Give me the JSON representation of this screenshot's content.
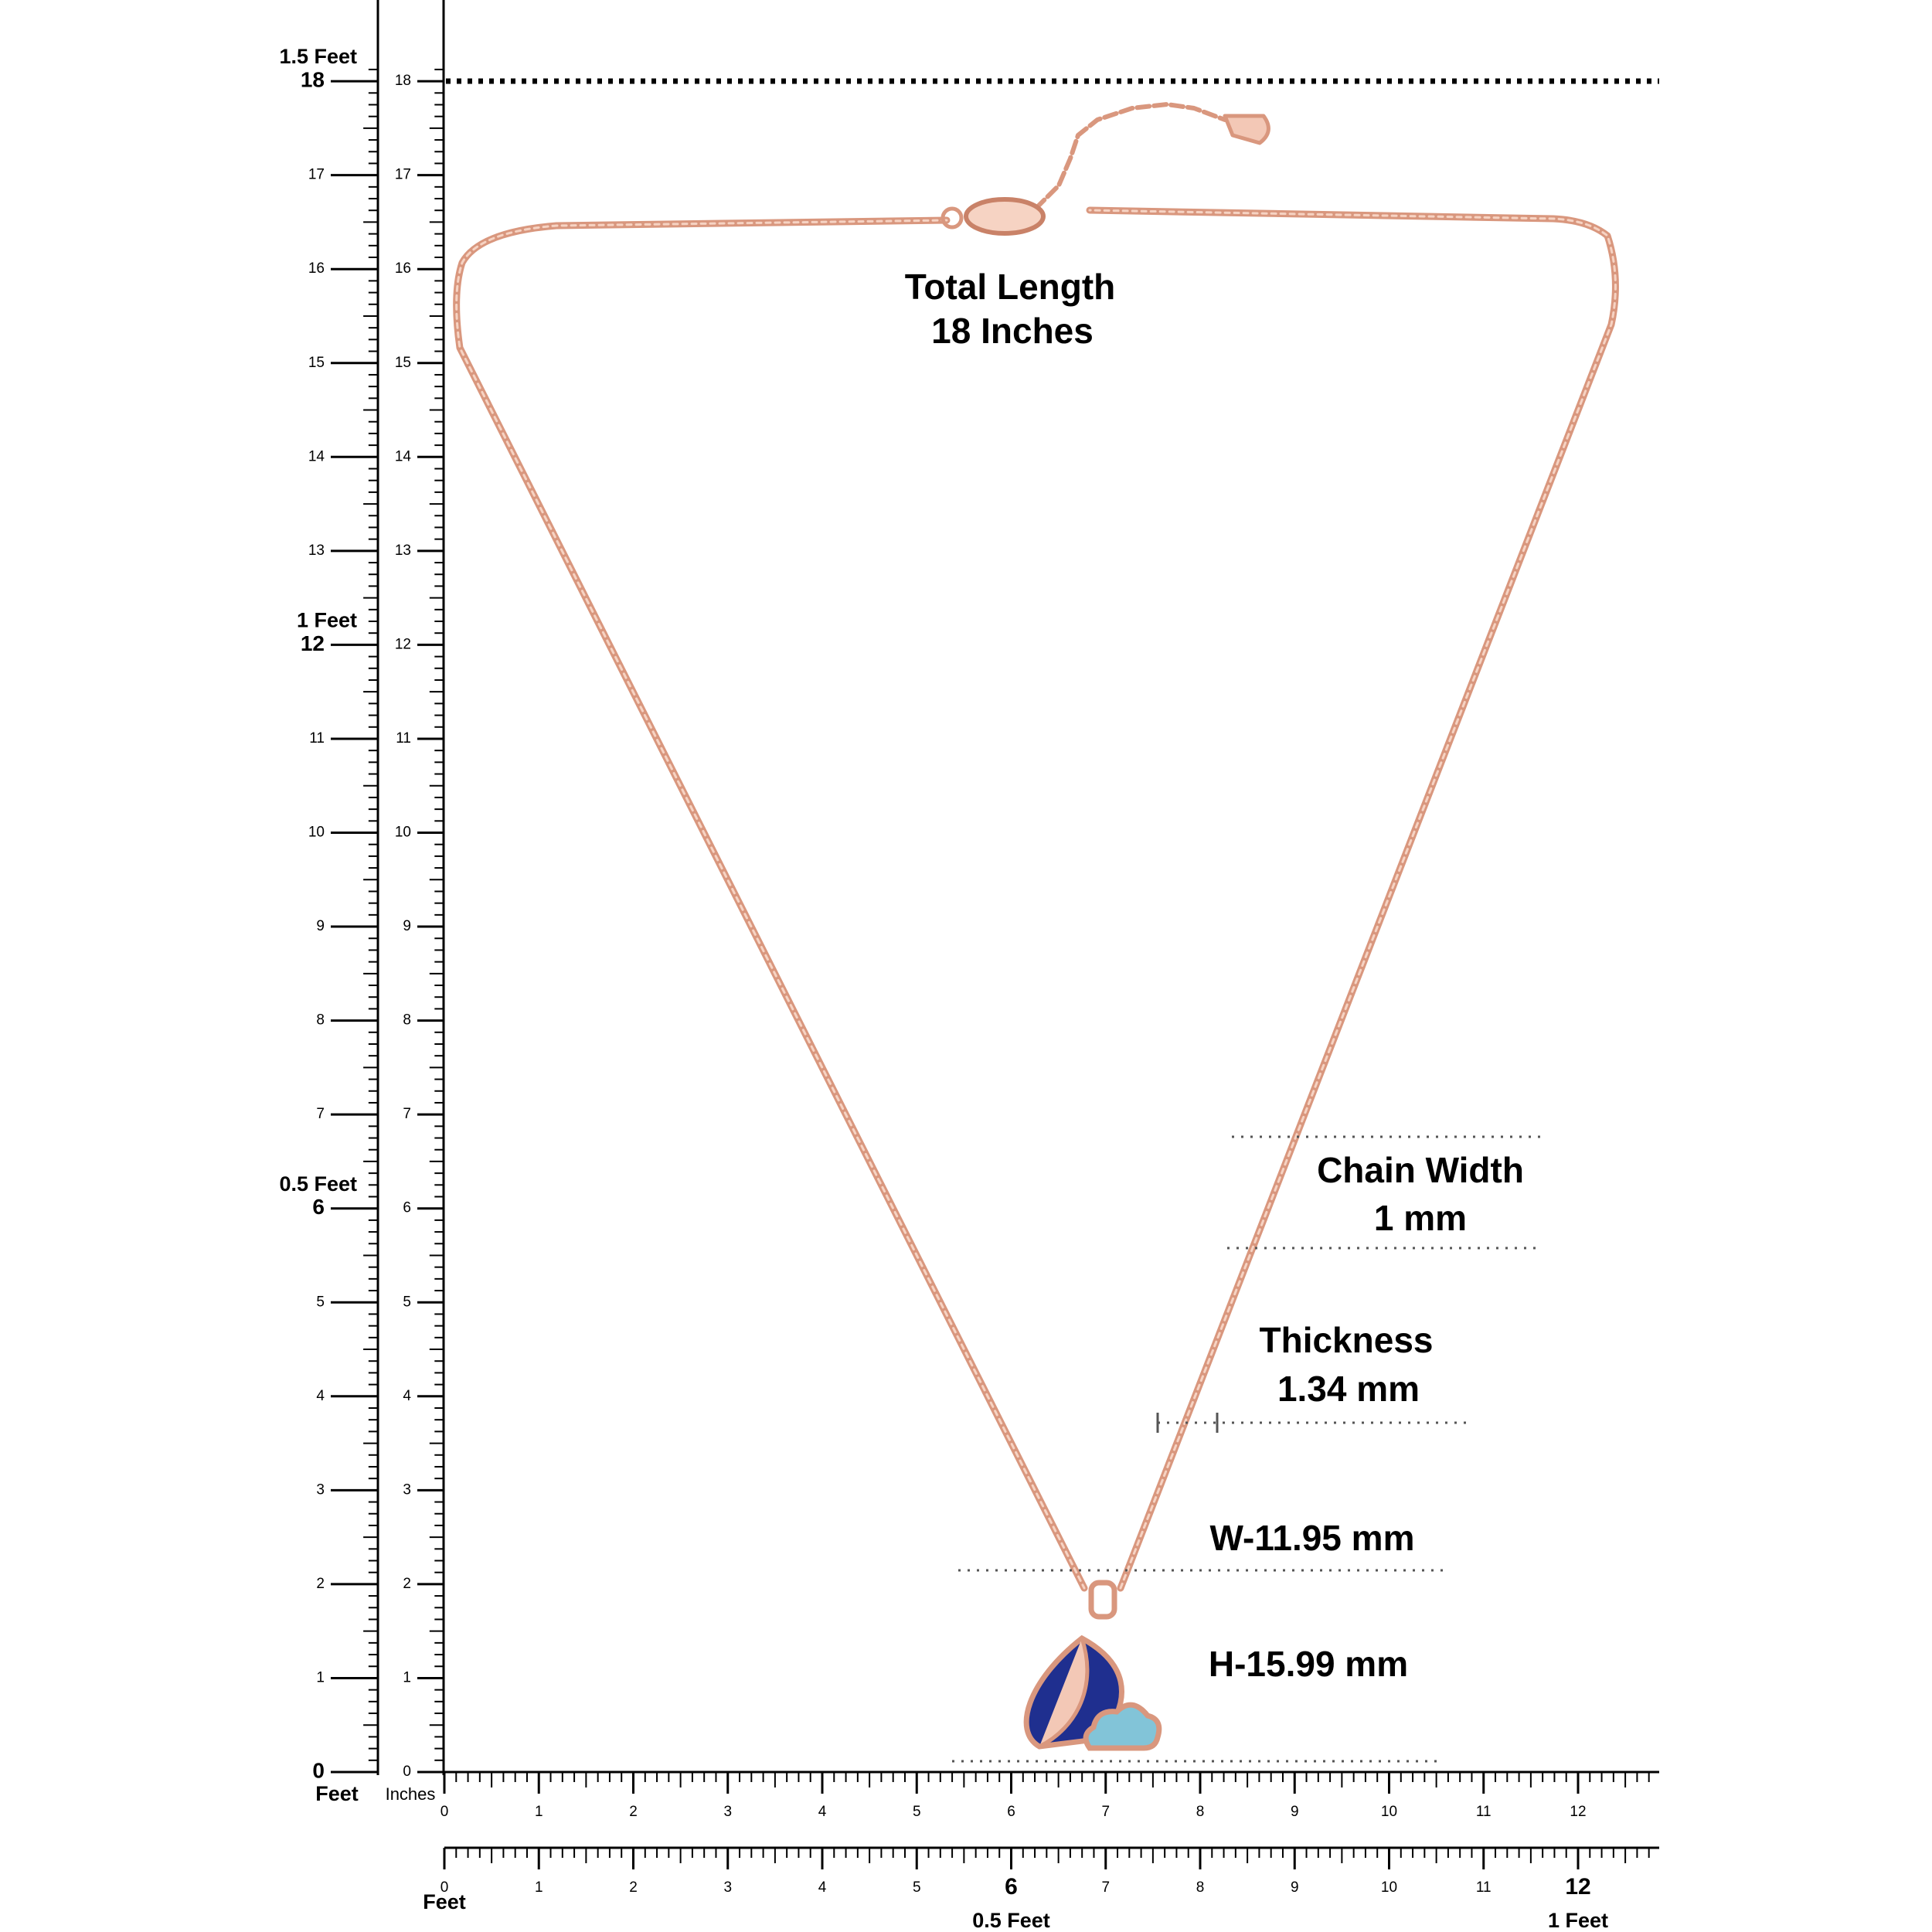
{
  "left_ruler": {
    "labels": [
      0,
      1,
      2,
      3,
      4,
      5,
      6,
      7,
      8,
      9,
      10,
      11,
      12,
      13,
      14,
      15,
      16,
      17,
      18
    ],
    "markers": [
      "0.5 Feet",
      "1 Feet",
      "1.5 Feet"
    ],
    "unit": "Feet"
  },
  "inch_ruler": {
    "labels": [
      0,
      1,
      2,
      3,
      4,
      5,
      6,
      7,
      8,
      9,
      10,
      11,
      12,
      13,
      14,
      15,
      16,
      17,
      18
    ],
    "unit": "Inches"
  },
  "bottom_ruler": {
    "labels": [
      0,
      1,
      2,
      3,
      4,
      5,
      6,
      7,
      8,
      9,
      10,
      11,
      12
    ]
  },
  "feet_ruler": {
    "labels": [
      0,
      1,
      2,
      3,
      4,
      5,
      6,
      7,
      8,
      9,
      10,
      11,
      12
    ],
    "unit": "Feet",
    "markers": [
      "0.5 Feet",
      "1 Feet"
    ]
  },
  "annotations": {
    "total_length": [
      "Total Length",
      "18 Inches"
    ],
    "chain_width": [
      "Chain Width",
      "1 mm"
    ],
    "thickness": [
      "Thickness",
      "1.34 mm"
    ],
    "width": "W-11.95 mm",
    "height": "H-15.99 mm"
  }
}
